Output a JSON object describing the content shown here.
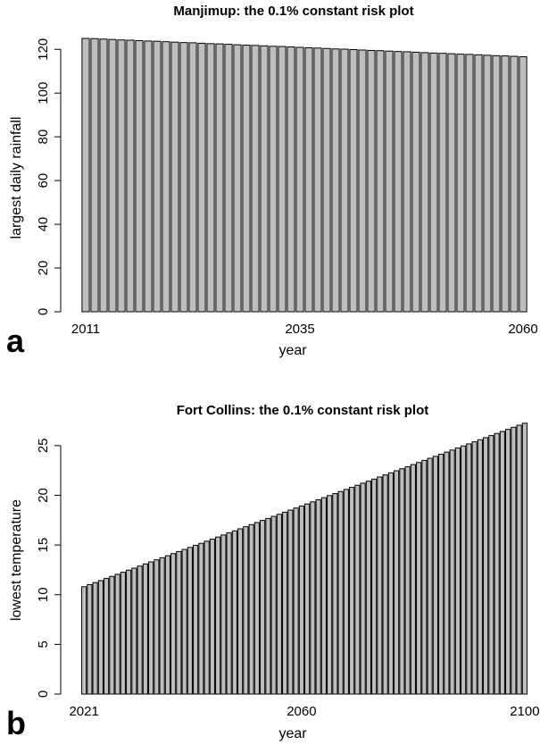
{
  "chart_data": [
    {
      "type": "bar",
      "panel_label": "a",
      "title": "Manjimup: the 0.1% constant risk plot",
      "xlabel": "year",
      "ylabel": "largest daily rainfall",
      "x_start": 2011,
      "x_end": 2060,
      "x_tick_labels": [
        "2011",
        "2035",
        "2060"
      ],
      "y_ticks": [
        0,
        20,
        40,
        60,
        80,
        100,
        120
      ],
      "ylim": [
        0,
        125
      ],
      "bar_color": "#bebebe",
      "series": [
        {
          "values": [
            125.0,
            124.9,
            124.7,
            124.5,
            124.3,
            124.2,
            124.0,
            123.8,
            123.7,
            123.5,
            123.3,
            123.1,
            123.0,
            122.8,
            122.6,
            122.5,
            122.3,
            122.1,
            121.9,
            121.8,
            121.6,
            121.4,
            121.3,
            121.1,
            120.9,
            120.7,
            120.6,
            120.4,
            120.2,
            120.1,
            119.9,
            119.7,
            119.5,
            119.4,
            119.2,
            119.0,
            118.9,
            118.7,
            118.5,
            118.3,
            118.2,
            118.0,
            117.8,
            117.7,
            117.5,
            117.3,
            117.1,
            117.0,
            116.8,
            116.6
          ]
        }
      ]
    },
    {
      "type": "bar",
      "panel_label": "b",
      "title": "Fort Collins: the 0.1% constant risk plot",
      "xlabel": "year",
      "ylabel": "lowest temperature",
      "x_start": 2021,
      "x_end": 2100,
      "x_tick_labels": [
        "2021",
        "2060",
        "2100"
      ],
      "y_ticks": [
        0,
        5,
        10,
        15,
        20,
        25
      ],
      "ylim": [
        0,
        27.5
      ],
      "bar_color": "#bebebe",
      "series": [
        {
          "values": [
            10.8,
            11.01,
            11.22,
            11.42,
            11.63,
            11.84,
            12.05,
            12.26,
            12.47,
            12.67,
            12.88,
            13.09,
            13.3,
            13.51,
            13.72,
            13.92,
            14.13,
            14.34,
            14.55,
            14.76,
            14.97,
            15.17,
            15.38,
            15.59,
            15.8,
            16.01,
            16.22,
            16.42,
            16.63,
            16.84,
            17.05,
            17.26,
            17.47,
            17.67,
            17.88,
            18.09,
            18.3,
            18.51,
            18.72,
            18.92,
            19.13,
            19.34,
            19.55,
            19.76,
            19.97,
            20.17,
            20.38,
            20.59,
            20.8,
            21.01,
            21.22,
            21.42,
            21.63,
            21.84,
            22.05,
            22.26,
            22.47,
            22.67,
            22.88,
            23.09,
            23.3,
            23.51,
            23.72,
            23.92,
            24.13,
            24.34,
            24.55,
            24.76,
            24.97,
            25.17,
            25.38,
            25.59,
            25.8,
            26.01,
            26.22,
            26.42,
            26.63,
            26.84,
            27.05,
            27.25
          ]
        }
      ]
    }
  ]
}
